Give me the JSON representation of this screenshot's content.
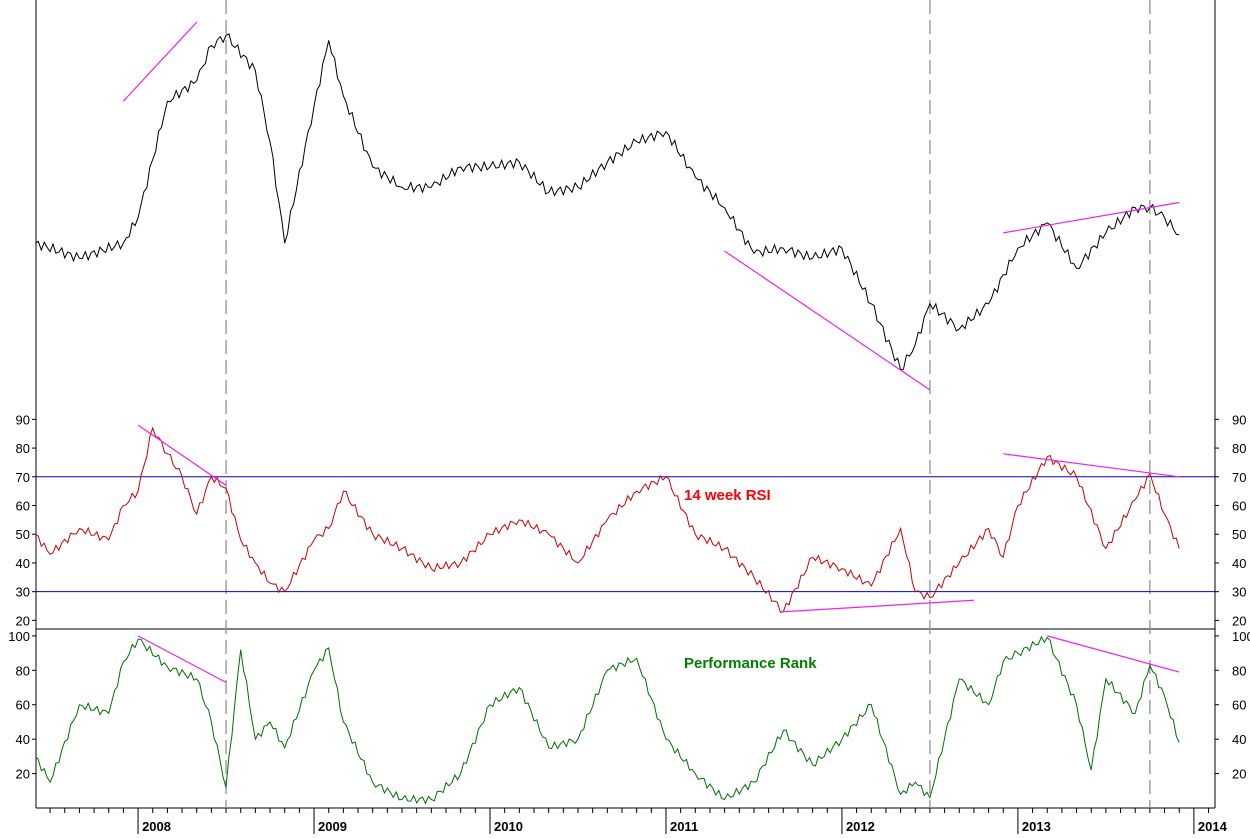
{
  "chart_data": [
    {
      "type": "line",
      "panel": "price",
      "title": "",
      "axis_labels_visible": false,
      "x": [
        "2007-06",
        "2007-09",
        "2007-12",
        "2008-01",
        "2008-03",
        "2008-05",
        "2008-06",
        "2008-07",
        "2008-09",
        "2008-10",
        "2008-11",
        "2009-01",
        "2009-02",
        "2009-03",
        "2009-05",
        "2009-07",
        "2009-09",
        "2009-11",
        "2010-01",
        "2010-03",
        "2010-05",
        "2010-07",
        "2010-09",
        "2010-11",
        "2011-01",
        "2011-03",
        "2011-05",
        "2011-07",
        "2011-09",
        "2011-11",
        "2012-01",
        "2012-03",
        "2012-05",
        "2012-06",
        "2012-07",
        "2012-09",
        "2012-11",
        "2013-01",
        "2013-03",
        "2013-05",
        "2013-07",
        "2013-09",
        "2013-10",
        "2013-11",
        "2013-12"
      ],
      "values": [
        240,
        255,
        240,
        215,
        100,
        80,
        45,
        35,
        70,
        140,
        240,
        105,
        40,
        95,
        165,
        185,
        185,
        165,
        165,
        160,
        190,
        185,
        160,
        140,
        130,
        175,
        205,
        250,
        245,
        255,
        245,
        300,
        365,
        340,
        300,
        325,
        300,
        245,
        220,
        265,
        230,
        205,
        205,
        215,
        232
      ],
      "annotations": [
        {
          "label": "trendline",
          "from": [
            "2007-12",
            100
          ],
          "to": [
            "2008-05",
            22
          ]
        },
        {
          "label": "trendline",
          "from": [
            "2011-05",
            248
          ],
          "to": [
            "2012-07",
            385
          ]
        },
        {
          "label": "trendline",
          "from": [
            "2012-12",
            230
          ],
          "to": [
            "2013-12",
            200
          ]
        }
      ]
    },
    {
      "type": "line",
      "panel": "rsi",
      "title": "14 week RSI",
      "title_color": "#ff0000",
      "line_color": "#cc0000",
      "yticks": [
        20,
        30,
        40,
        50,
        60,
        70,
        80,
        90
      ],
      "ylim": [
        17,
        95
      ],
      "reference_lines": [
        30,
        70
      ],
      "x": [
        "2007-06",
        "2007-07",
        "2007-09",
        "2007-11",
        "2007-12",
        "2008-01",
        "2008-02",
        "2008-03",
        "2008-04",
        "2008-05",
        "2008-06",
        "2008-07",
        "2008-08",
        "2008-09",
        "2008-10",
        "2008-11",
        "2009-01",
        "2009-02",
        "2009-03",
        "2009-05",
        "2009-07",
        "2009-09",
        "2009-11",
        "2010-01",
        "2010-03",
        "2010-05",
        "2010-07",
        "2010-09",
        "2010-11",
        "2011-01",
        "2011-03",
        "2011-05",
        "2011-07",
        "2011-09",
        "2011-11",
        "2012-01",
        "2012-03",
        "2012-05",
        "2012-06",
        "2012-07",
        "2012-09",
        "2012-11",
        "2012-12",
        "2013-01",
        "2013-03",
        "2013-05",
        "2013-07",
        "2013-09",
        "2013-10",
        "2013-11",
        "2013-12"
      ],
      "values": [
        50,
        43,
        52,
        48,
        60,
        65,
        87,
        78,
        70,
        57,
        70,
        66,
        48,
        40,
        33,
        30,
        48,
        52,
        65,
        50,
        45,
        38,
        40,
        50,
        55,
        50,
        40,
        55,
        65,
        70,
        50,
        45,
        35,
        23,
        42,
        38,
        32,
        52,
        30,
        28,
        40,
        52,
        42,
        60,
        77,
        70,
        45,
        62,
        71,
        57,
        45
      ],
      "annotations": [
        {
          "label": "trendline",
          "from": [
            "2008-01",
            88
          ],
          "to": [
            "2008-07",
            67
          ]
        },
        {
          "label": "trendline",
          "from": [
            "2011-09",
            23
          ],
          "to": [
            "2012-10",
            27
          ]
        },
        {
          "label": "trendline",
          "from": [
            "2012-12",
            78
          ],
          "to": [
            "2013-12",
            70
          ]
        }
      ]
    },
    {
      "type": "line",
      "panel": "performance_rank",
      "title": "Performance Rank",
      "title_color": "#008000",
      "line_color": "#007000",
      "yticks": [
        20,
        40,
        60,
        80,
        100
      ],
      "ylim": [
        0,
        104
      ],
      "x": [
        "2007-06",
        "2007-07",
        "2007-09",
        "2007-11",
        "2007-12",
        "2008-01",
        "2008-03",
        "2008-05",
        "2008-06",
        "2008-07",
        "2008-08",
        "2008-09",
        "2008-10",
        "2008-11",
        "2009-01",
        "2009-02",
        "2009-03",
        "2009-05",
        "2009-07",
        "2009-09",
        "2009-11",
        "2010-01",
        "2010-03",
        "2010-05",
        "2010-07",
        "2010-09",
        "2010-11",
        "2011-01",
        "2011-03",
        "2011-05",
        "2011-07",
        "2011-09",
        "2011-11",
        "2012-01",
        "2012-03",
        "2012-05",
        "2012-06",
        "2012-07",
        "2012-09",
        "2012-11",
        "2012-12",
        "2013-01",
        "2013-03",
        "2013-05",
        "2013-06",
        "2013-07",
        "2013-09",
        "2013-10",
        "2013-11",
        "2013-12"
      ],
      "values": [
        30,
        15,
        60,
        55,
        85,
        98,
        82,
        75,
        50,
        12,
        92,
        40,
        50,
        35,
        80,
        93,
        50,
        15,
        5,
        5,
        20,
        60,
        70,
        35,
        40,
        80,
        87,
        40,
        20,
        5,
        15,
        45,
        25,
        40,
        60,
        8,
        15,
        6,
        75,
        60,
        85,
        90,
        99,
        60,
        22,
        75,
        55,
        83,
        65,
        38
      ],
      "annotations": [
        {
          "label": "trendline",
          "from": [
            "2008-01",
            100
          ],
          "to": [
            "2008-07",
            73
          ]
        },
        {
          "label": "trendline",
          "from": [
            "2013-03",
            100
          ],
          "to": [
            "2013-12",
            79
          ]
        }
      ]
    }
  ],
  "shared_x_axis": {
    "year_labels": [
      "2008",
      "2009",
      "2010",
      "2011",
      "2012",
      "2013",
      "2014"
    ],
    "vertical_markers": [
      "2008-07",
      "2012-07",
      "2013-10"
    ]
  },
  "colors": {
    "price_line": "#000000",
    "trendline": "#ee22ee",
    "reference_line": "#0000dd",
    "marker_line": "#888888",
    "axis": "#000000"
  }
}
